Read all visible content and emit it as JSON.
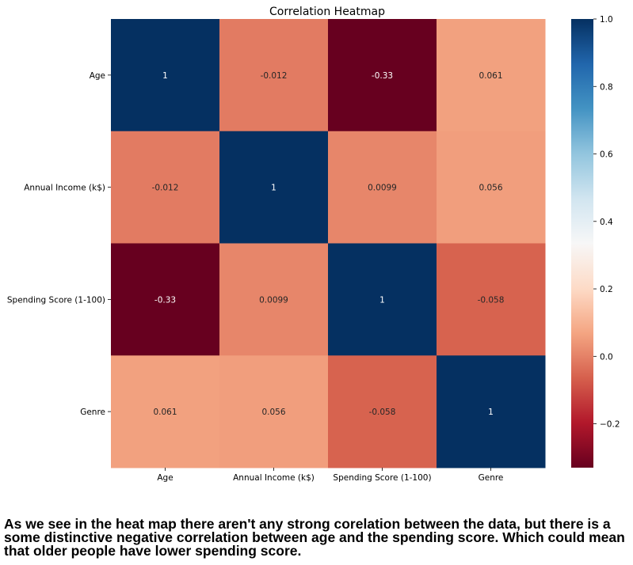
{
  "chart_data": {
    "type": "heatmap",
    "title": "Correlation Heatmap",
    "xlabel": "",
    "ylabel": "",
    "x_categories": [
      "Age",
      "Annual Income (k$)",
      "Spending Score (1-100)",
      "Genre"
    ],
    "y_categories": [
      "Age",
      "Annual Income (k$)",
      "Spending Score (1-100)",
      "Genre"
    ],
    "values": [
      [
        1,
        -0.012,
        -0.33,
        0.061
      ],
      [
        -0.012,
        1,
        0.0099,
        0.056
      ],
      [
        -0.33,
        0.0099,
        1,
        -0.058
      ],
      [
        0.061,
        0.056,
        -0.058,
        1
      ]
    ],
    "annotations": [
      [
        "1",
        "-0.012",
        "-0.33",
        "0.061"
      ],
      [
        "-0.012",
        "1",
        "0.0099",
        "0.056"
      ],
      [
        "-0.33",
        "0.0099",
        "1",
        "-0.058"
      ],
      [
        "0.061",
        "0.056",
        "-0.058",
        "1"
      ]
    ],
    "colormap": "RdBu",
    "vmin": -0.33,
    "vmax": 1.0,
    "colorbar_ticks": [
      1.0,
      0.8,
      0.6,
      0.4,
      0.2,
      0.0,
      -0.2
    ],
    "colorbar_tick_labels": [
      "1.0",
      "0.8",
      "0.6",
      "0.4",
      "0.2",
      "0.0",
      "−0.2"
    ],
    "grid": false
  },
  "caption": "As we see in the heat map there aren't any strong corelation between the data, but there is a some distinctive negative correlation between age and the spending score. Which could mean that older people have lower spending score."
}
